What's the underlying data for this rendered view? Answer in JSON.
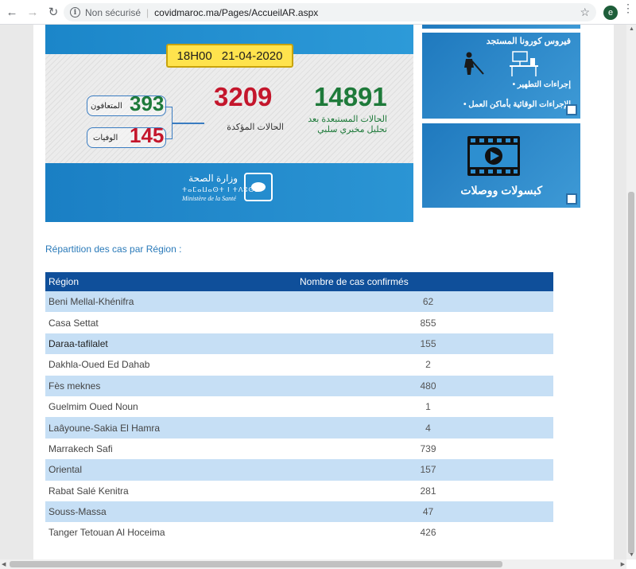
{
  "browser": {
    "back_icon": "arrow-left-icon",
    "forward_icon": "arrow-right-icon",
    "reload_icon": "reload-icon",
    "security_label": "Non sécurisé",
    "url": "covidmaroc.ma/Pages/AccueilAR.aspx",
    "avatar_letter": "e"
  },
  "banner": {
    "time": "18H00",
    "date": "21-04-2020",
    "tested_negative": "14891",
    "tested_negative_label_1": "الحالات المستبعدة بعد",
    "tested_negative_label_2": "تحليل مخبري سلبي",
    "confirmed": "3209",
    "confirmed_label": "الحالات المؤكدة",
    "recovered": "393",
    "recovered_label": "المتعافون",
    "deaths": "145",
    "deaths_label": "الوفيات",
    "ministry_ar": "وزارة الصحة",
    "ministry_tf": "ⵜⴰⵎⴰⵡⴰⵙⵜ ⵏ ⵜⴷⵓⵙⵉ",
    "ministry_fr": "Ministère de la Santé"
  },
  "tiles": {
    "prevention_title": "فيروس كورونا المستجد",
    "prevention_item_1": "إجراءات التطهير •",
    "prevention_item_2": "الإجراءات الوقائية بأماكن العمل •",
    "videos_title": "كبسولات ووصلات"
  },
  "section": {
    "title": "Répartition des cas par Région :"
  },
  "table": {
    "headers": [
      "Région",
      "Nombre de cas confirmés"
    ],
    "rows": [
      {
        "region": "Beni Mellal-Khénifra",
        "cases": "62"
      },
      {
        "region": "Casa Settat",
        "cases": "855"
      },
      {
        "region": "Daraa-tafilalet",
        "cases": "155"
      },
      {
        "region": "Dakhla-Oued Ed Dahab",
        "cases": "2"
      },
      {
        "region": "Fès meknes",
        "cases": "480"
      },
      {
        "region": "Guelmim Oued Noun",
        "cases": "1"
      },
      {
        "region": "Laâyoune-Sakia El Hamra",
        "cases": "4"
      },
      {
        "region": "Marrakech Safi",
        "cases": "739"
      },
      {
        "region": "Oriental",
        "cases": "157"
      },
      {
        "region": "Rabat Salé Kenitra",
        "cases": "281"
      },
      {
        "region": "Souss-Massa",
        "cases": "47"
      },
      {
        "region": "Tanger Tetouan Al Hoceima",
        "cases": "426"
      }
    ]
  },
  "colors": {
    "table_header": "#0f4f9a",
    "row_stripe": "#c6dff5",
    "confirmed_red": "#c4162c",
    "recovered_green": "#1e7a3a",
    "date_yellow": "#ffe34d"
  }
}
